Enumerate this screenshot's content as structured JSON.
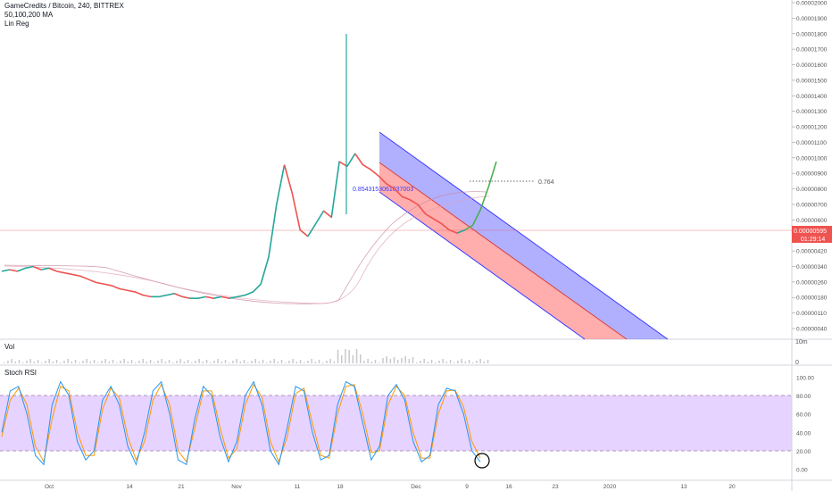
{
  "chart_data": {
    "type": "line",
    "title": "GameCredits / Bitcoin, 240, BITTREX",
    "indicators": [
      "50,100,200 MA",
      "Lin Reg"
    ],
    "price_axis_labels": [
      "0.00002000",
      "0.00001900",
      "0.00001800",
      "0.00001700",
      "0.00001600",
      "0.00001500",
      "0.00001400",
      "0.00001300",
      "0.00001200",
      "0.00001100",
      "0.00001000",
      "0.00000900",
      "0.00000800",
      "0.00000700",
      "0.00000600",
      "0.00000500",
      "0.00000420",
      "0.00000340",
      "0.00000260",
      "0.00000180",
      "0.00000110",
      "0.00000040"
    ],
    "last_price": "0.00000595",
    "countdown": "01:29:14",
    "annotation_fib": "0.764",
    "annotation_linreg": "0.8543153061037003",
    "x_tick_labels": [
      "Oct",
      "14",
      "21",
      "Nov",
      "11",
      "18",
      "Dec",
      "9",
      "16",
      "23",
      "2020",
      "13",
      "20"
    ],
    "price_series": [
      3.6,
      3.7,
      3.6,
      3.8,
      3.9,
      3.7,
      3.8,
      3.6,
      3.5,
      3.4,
      3.3,
      3.1,
      2.9,
      2.8,
      2.7,
      2.5,
      2.4,
      2.3,
      2.1,
      2.0,
      2.0,
      2.1,
      2.2,
      2.0,
      1.9,
      1.9,
      2.0,
      1.9,
      2.0,
      1.9,
      2.0,
      2.1,
      2.3,
      2.8,
      4.5,
      7.8,
      10.3,
      8.5,
      6.2,
      5.8,
      6.6,
      7.4,
      7.0,
      10.5,
      10.2,
      11.0,
      10.3,
      10.0,
      9.6,
      9.1,
      8.8,
      8.3,
      8.1,
      7.8,
      7.2,
      6.9,
      6.6,
      6.2,
      6.0,
      6.2,
      6.5,
      7.5,
      8.9,
      10.5
    ],
    "volume": {
      "pane_label": "Vol",
      "axis_labels": [
        "10m",
        "0"
      ]
    },
    "stoch_rsi": {
      "pane_label": "Stoch RSI",
      "axis_labels": [
        "100.00",
        "80.00",
        "60.00",
        "40.00",
        "20.00",
        "0.00"
      ],
      "upper_band": 80,
      "lower_band": 20,
      "k_values": [
        40,
        85,
        90,
        60,
        15,
        5,
        70,
        95,
        80,
        30,
        10,
        20,
        75,
        90,
        70,
        25,
        5,
        40,
        85,
        95,
        60,
        10,
        5,
        55,
        90,
        80,
        35,
        8,
        30,
        80,
        95,
        70,
        20,
        5,
        45,
        90,
        85,
        40,
        10,
        15,
        70,
        95,
        90,
        50,
        10,
        25,
        80,
        92,
        75,
        30,
        8,
        15,
        70,
        88,
        85,
        60,
        20,
        8
      ],
      "d_values": [
        35,
        75,
        88,
        70,
        25,
        8,
        55,
        90,
        85,
        40,
        15,
        15,
        65,
        88,
        78,
        35,
        10,
        30,
        75,
        92,
        70,
        20,
        8,
        45,
        85,
        85,
        45,
        12,
        22,
        70,
        92,
        78,
        30,
        8,
        35,
        82,
        88,
        50,
        15,
        12,
        60,
        90,
        92,
        60,
        18,
        20,
        70,
        90,
        80,
        40,
        12,
        12,
        60,
        85,
        86,
        68,
        30,
        12
      ]
    },
    "colors": {
      "up": "#26a69a",
      "down": "#ef5350",
      "channel_upper_fill": "#7b7bff",
      "channel_lower_fill": "#ff8a8a",
      "channel_line": "#3a3aff",
      "stoch_fill": "#e1c8ff",
      "stoch_k": "#2196f3",
      "stoch_d": "#ff9800",
      "last_price_line": "#ef5350",
      "breakout": "#4caf50"
    }
  }
}
